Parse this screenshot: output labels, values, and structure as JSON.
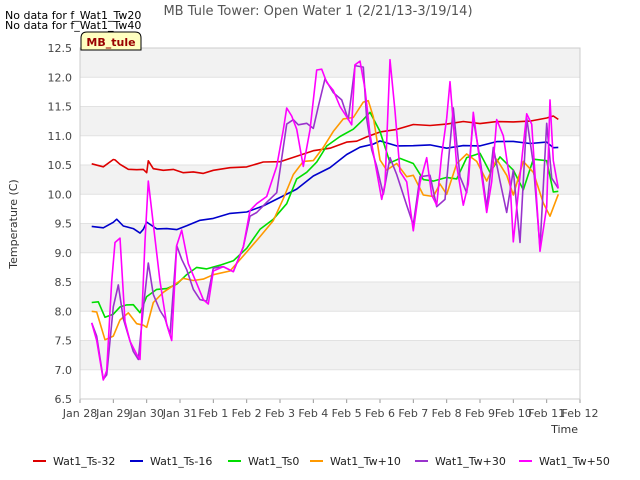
{
  "chart_data": {
    "type": "line",
    "title": "MB Tule Tower: Open Water 1 (2/21/13-3/19/14)",
    "xlabel": "Time",
    "ylabel": "Temperature (C)",
    "ylim": [
      6.5,
      12.5
    ],
    "yticks": [
      "6.5",
      "7.0",
      "7.5",
      "8.0",
      "8.5",
      "9.0",
      "9.5",
      "10.0",
      "10.5",
      "11.0",
      "11.5",
      "12.0",
      "12.5"
    ],
    "xlim": [
      0,
      15
    ],
    "xticks": [
      "Jan 28",
      "Jan 29",
      "Jan 30",
      "Jan 31",
      "Feb 1",
      "Feb 2",
      "Feb 3",
      "Feb 4",
      "Feb 5",
      "Feb 6",
      "Feb 7",
      "Feb 8",
      "Feb 9",
      "Feb 10",
      "Feb 11",
      "Feb 12"
    ],
    "notes": [
      "No data for f_Wat1_Tw20",
      "No data for f_Wat1_Tw40"
    ],
    "site_badge": "MB_tule",
    "grid": true,
    "legend_position": "bottom",
    "series": [
      {
        "name": "Wat1_Ts-32",
        "color": "#dd0000",
        "x": [
          0.35,
          0.7,
          1.0,
          1.05,
          1.2,
          1.45,
          1.7,
          1.9,
          2.0,
          2.05,
          2.2,
          2.5,
          2.8,
          3.1,
          3.4,
          3.7,
          4.0,
          4.5,
          5.0,
          5.5,
          6.0,
          6.5,
          7.0,
          7.5,
          8.0,
          8.3,
          8.6,
          9.0,
          9.5,
          10.0,
          10.5,
          11.0,
          11.5,
          12.0,
          12.5,
          13.0,
          13.5,
          14.0,
          14.2,
          14.35
        ],
        "y": [
          10.52,
          10.47,
          10.57,
          10.6,
          10.5,
          10.45,
          10.42,
          10.4,
          10.38,
          10.56,
          10.46,
          10.41,
          10.4,
          10.38,
          10.37,
          10.38,
          10.41,
          10.43,
          10.48,
          10.54,
          10.58,
          10.65,
          10.72,
          10.8,
          10.88,
          10.93,
          10.98,
          11.04,
          11.12,
          11.18,
          11.2,
          11.2,
          11.22,
          11.22,
          11.23,
          11.26,
          11.25,
          11.28,
          11.35,
          11.28
        ]
      },
      {
        "name": "Wat1_Ts-16",
        "color": "#0000cc",
        "x": [
          0.35,
          0.7,
          1.0,
          1.1,
          1.3,
          1.6,
          1.8,
          1.9,
          2.0,
          2.3,
          2.6,
          2.9,
          3.2,
          3.6,
          4.0,
          4.5,
          5.0,
          5.5,
          6.0,
          6.5,
          7.0,
          7.5,
          8.0,
          8.4,
          8.8,
          9.0,
          9.5,
          10.0,
          10.5,
          11.0,
          11.5,
          12.0,
          12.5,
          13.0,
          13.5,
          14.0,
          14.2,
          14.35
        ],
        "y": [
          9.45,
          9.45,
          9.52,
          9.55,
          9.47,
          9.4,
          9.36,
          9.4,
          9.5,
          9.42,
          9.4,
          9.42,
          9.46,
          9.53,
          9.6,
          9.66,
          9.72,
          9.8,
          9.92,
          10.1,
          10.3,
          10.48,
          10.68,
          10.78,
          10.87,
          10.9,
          10.85,
          10.83,
          10.82,
          10.8,
          10.82,
          10.85,
          10.9,
          10.88,
          10.88,
          10.88,
          10.82,
          10.8
        ]
      },
      {
        "name": "Wat1_Ts0",
        "color": "#00dd00",
        "x": [
          0.35,
          0.55,
          0.75,
          1.0,
          1.2,
          1.4,
          1.6,
          1.8,
          2.0,
          2.3,
          2.6,
          2.9,
          3.2,
          3.5,
          3.8,
          4.2,
          4.6,
          5.0,
          5.4,
          5.8,
          6.2,
          6.5,
          6.8,
          7.1,
          7.4,
          7.8,
          8.2,
          8.5,
          8.7,
          9.0,
          9.3,
          9.6,
          10.0,
          10.3,
          10.6,
          11.0,
          11.3,
          11.6,
          12.0,
          12.3,
          12.6,
          13.0,
          13.3,
          13.6,
          14.0,
          14.2,
          14.35
        ],
        "y": [
          8.15,
          8.15,
          7.92,
          7.95,
          8.05,
          8.12,
          8.1,
          8.0,
          8.25,
          8.35,
          8.4,
          8.45,
          8.65,
          8.75,
          8.7,
          8.8,
          8.85,
          9.1,
          9.4,
          9.55,
          9.85,
          10.25,
          10.4,
          10.55,
          10.8,
          11.0,
          11.1,
          11.3,
          11.4,
          11.05,
          10.55,
          10.6,
          10.55,
          10.25,
          10.2,
          10.3,
          10.25,
          10.65,
          10.7,
          10.35,
          10.65,
          10.4,
          10.1,
          10.6,
          10.55,
          10.05,
          10.05
        ]
      },
      {
        "name": "Wat1_Tw+10",
        "color": "#ff9900",
        "x": [
          0.35,
          0.5,
          0.75,
          1.0,
          1.2,
          1.45,
          1.7,
          1.9,
          2.0,
          2.2,
          2.5,
          2.8,
          3.1,
          3.4,
          3.7,
          4.0,
          4.5,
          5.0,
          5.4,
          5.8,
          6.1,
          6.4,
          6.7,
          7.0,
          7.3,
          7.6,
          7.9,
          8.2,
          8.5,
          8.65,
          8.8,
          9.0,
          9.2,
          9.5,
          9.8,
          10.0,
          10.3,
          10.6,
          10.8,
          11.0,
          11.3,
          11.6,
          11.9,
          12.2,
          12.5,
          12.8,
          13.0,
          13.3,
          13.6,
          13.9,
          14.1,
          14.35
        ],
        "y": [
          8.0,
          8.0,
          7.5,
          7.6,
          7.85,
          7.95,
          7.8,
          7.75,
          7.75,
          8.15,
          8.3,
          8.45,
          8.55,
          8.55,
          8.55,
          8.6,
          8.7,
          9.0,
          9.3,
          9.55,
          9.9,
          10.35,
          10.55,
          10.6,
          10.8,
          11.05,
          11.3,
          11.3,
          11.6,
          11.6,
          11.3,
          10.6,
          10.4,
          10.55,
          10.3,
          10.3,
          10.0,
          9.95,
          10.2,
          10.0,
          10.5,
          10.7,
          10.55,
          10.25,
          10.6,
          10.3,
          10.0,
          10.55,
          10.4,
          9.85,
          9.6,
          10.0
        ]
      },
      {
        "name": "Wat1_Tw+30",
        "color": "#9933cc",
        "x": [
          0.35,
          0.5,
          0.7,
          0.8,
          1.0,
          1.15,
          1.3,
          1.45,
          1.6,
          1.75,
          1.9,
          2.05,
          2.2,
          2.4,
          2.55,
          2.7,
          2.9,
          3.05,
          3.2,
          3.4,
          3.6,
          3.8,
          4.0,
          4.3,
          4.6,
          4.9,
          5.1,
          5.3,
          5.6,
          5.9,
          6.2,
          6.4,
          6.55,
          6.8,
          7.0,
          7.15,
          7.35,
          7.6,
          7.85,
          8.05,
          8.25,
          8.5,
          8.6,
          8.75,
          8.9,
          9.1,
          9.3,
          9.5,
          9.8,
          10.0,
          10.2,
          10.5,
          10.7,
          10.95,
          11.2,
          11.4,
          11.6,
          11.8,
          12.0,
          12.2,
          12.4,
          12.6,
          12.8,
          13.0,
          13.2,
          13.4,
          13.6,
          13.8,
          14.0,
          14.15,
          14.35
        ],
        "y": [
          7.8,
          7.55,
          6.85,
          6.9,
          8.1,
          8.45,
          7.85,
          7.6,
          7.3,
          7.2,
          8.05,
          8.8,
          8.3,
          8.0,
          7.9,
          7.6,
          9.1,
          8.9,
          8.7,
          8.4,
          8.2,
          8.15,
          8.75,
          8.75,
          8.7,
          9.1,
          9.6,
          9.7,
          9.85,
          10.05,
          11.2,
          11.25,
          11.2,
          11.2,
          11.15,
          11.5,
          11.95,
          11.75,
          11.6,
          11.3,
          12.2,
          12.15,
          11.3,
          10.75,
          10.5,
          10.0,
          10.6,
          10.35,
          9.8,
          9.5,
          10.3,
          10.3,
          9.8,
          9.9,
          11.5,
          10.3,
          10.0,
          11.3,
          10.6,
          9.8,
          10.8,
          10.2,
          9.7,
          10.4,
          9.2,
          11.3,
          10.5,
          9.1,
          11.2,
          10.3,
          10.1
        ]
      },
      {
        "name": "Wat1_Tw+50",
        "color": "#ff00ff",
        "x": [
          0.35,
          0.5,
          0.7,
          0.8,
          0.95,
          1.05,
          1.2,
          1.35,
          1.5,
          1.7,
          1.8,
          1.95,
          2.05,
          2.2,
          2.4,
          2.6,
          2.75,
          2.9,
          3.05,
          3.25,
          3.5,
          3.7,
          3.85,
          4.0,
          4.3,
          4.6,
          4.9,
          5.1,
          5.3,
          5.6,
          5.9,
          6.1,
          6.2,
          6.35,
          6.5,
          6.7,
          6.9,
          7.1,
          7.25,
          7.4,
          7.6,
          7.8,
          8.0,
          8.15,
          8.25,
          8.4,
          8.55,
          8.7,
          8.9,
          9.05,
          9.15,
          9.3,
          9.45,
          9.6,
          9.8,
          10.0,
          10.2,
          10.4,
          10.55,
          10.7,
          10.85,
          11.0,
          11.1,
          11.3,
          11.5,
          11.65,
          11.8,
          12.0,
          12.2,
          12.35,
          12.5,
          12.7,
          12.9,
          13.0,
          13.2,
          13.4,
          13.55,
          13.8,
          14.0,
          14.1,
          14.2,
          14.35
        ],
        "y": [
          7.8,
          7.5,
          6.8,
          7.0,
          8.5,
          9.2,
          9.25,
          7.8,
          7.5,
          7.25,
          7.2,
          9.2,
          10.2,
          9.5,
          8.5,
          7.8,
          7.5,
          9.1,
          9.4,
          8.8,
          8.5,
          8.2,
          8.1,
          8.7,
          8.75,
          8.7,
          9.1,
          9.7,
          9.85,
          9.95,
          10.5,
          11.1,
          11.45,
          11.35,
          11.1,
          10.5,
          11.1,
          12.1,
          12.15,
          11.9,
          11.8,
          11.5,
          11.3,
          11.2,
          12.2,
          12.3,
          11.8,
          11.0,
          10.4,
          9.9,
          10.2,
          12.3,
          11.4,
          10.4,
          10.2,
          9.4,
          10.2,
          10.6,
          10.0,
          9.8,
          10.7,
          11.3,
          11.9,
          10.5,
          9.8,
          10.2,
          11.4,
          10.5,
          9.7,
          10.2,
          11.3,
          11.0,
          10.2,
          9.2,
          10.3,
          11.4,
          11.2,
          9.0,
          9.8,
          11.6,
          10.6,
          10.1
        ]
      }
    ]
  }
}
